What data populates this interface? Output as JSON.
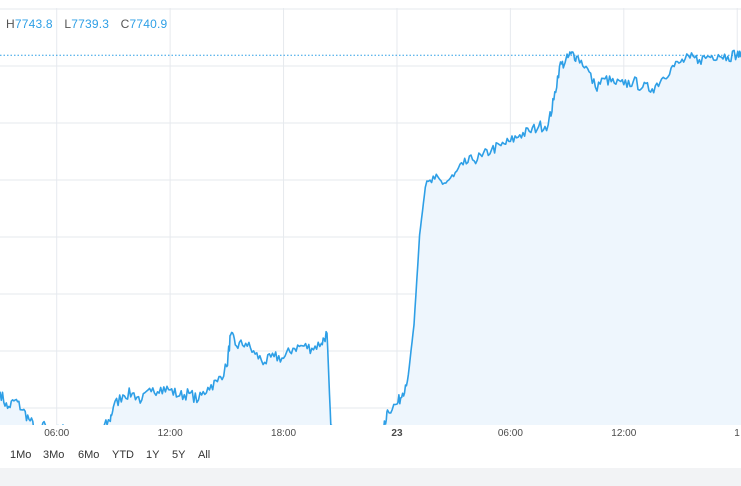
{
  "legend": {
    "high_key": "H",
    "high": "7743.8",
    "low_key": "L",
    "low": "7739.3",
    "close_key": "C",
    "close": "7740.9"
  },
  "range_buttons": [
    "1Mo",
    "3Mo",
    "6Mo",
    "YTD",
    "1Y",
    "5Y",
    "All"
  ],
  "colors": {
    "line": "#2e9fe6",
    "area": "#eef6fd",
    "grid": "#e6e9ee",
    "price_line": "#2e9fe6",
    "footer": "#f2f3f5"
  },
  "chart_data": {
    "type": "area",
    "x_tick_labels": [
      {
        "label": "06:00",
        "hour": 6
      },
      {
        "label": "12:00",
        "hour": 12
      },
      {
        "label": "18:00",
        "hour": 18
      },
      {
        "label": "23",
        "hour": 24,
        "bold": true
      },
      {
        "label": "06:00",
        "hour": 30
      },
      {
        "label": "12:00",
        "hour": 36
      },
      {
        "label": "1",
        "hour": 42
      }
    ],
    "x_range_hours": [
      3,
      42.2
    ],
    "y_range": [
      7300,
      7800
    ],
    "current_price": 7740.9,
    "grid": true,
    "points": [
      [
        3.0,
        7340
      ],
      [
        3.4,
        7320
      ],
      [
        3.8,
        7330
      ],
      [
        4.2,
        7318
      ],
      [
        4.6,
        7305
      ],
      [
        5.0,
        7290
      ],
      [
        5.4,
        7300
      ],
      [
        5.8,
        7288
      ],
      [
        6.2,
        7296
      ],
      [
        6.6,
        7292
      ],
      [
        7.0,
        7285
      ],
      [
        7.4,
        7290
      ],
      [
        7.8,
        7283
      ],
      [
        8.0,
        7280
      ],
      [
        8.4,
        7295
      ],
      [
        8.8,
        7305
      ],
      [
        9.0,
        7322
      ],
      [
        9.5,
        7336
      ],
      [
        10.0,
        7338
      ],
      [
        10.5,
        7330
      ],
      [
        11.0,
        7340
      ],
      [
        11.5,
        7345
      ],
      [
        12.0,
        7342
      ],
      [
        12.5,
        7335
      ],
      [
        13.0,
        7338
      ],
      [
        13.5,
        7330
      ],
      [
        14.0,
        7345
      ],
      [
        14.5,
        7352
      ],
      [
        15.0,
        7370
      ],
      [
        15.2,
        7408
      ],
      [
        15.5,
        7395
      ],
      [
        16.0,
        7398
      ],
      [
        16.5,
        7385
      ],
      [
        17.0,
        7375
      ],
      [
        17.5,
        7382
      ],
      [
        18.0,
        7380
      ],
      [
        18.5,
        7392
      ],
      [
        19.0,
        7395
      ],
      [
        19.5,
        7392
      ],
      [
        20.0,
        7398
      ],
      [
        20.3,
        7410
      ],
      [
        20.5,
        7300
      ],
      [
        20.8,
        7270
      ],
      [
        21.0,
        7285
      ],
      [
        21.5,
        7280
      ],
      [
        22.0,
        7290
      ],
      [
        22.5,
        7285
      ],
      [
        23.0,
        7282
      ],
      [
        23.3,
        7295
      ],
      [
        23.5,
        7318
      ],
      [
        24.0,
        7325
      ],
      [
        24.3,
        7338
      ],
      [
        24.6,
        7360
      ],
      [
        24.9,
        7420
      ],
      [
        25.2,
        7528
      ],
      [
        25.5,
        7585
      ],
      [
        26.0,
        7595
      ],
      [
        26.5,
        7590
      ],
      [
        27.0,
        7598
      ],
      [
        27.5,
        7612
      ],
      [
        28.0,
        7618
      ],
      [
        28.5,
        7622
      ],
      [
        29.0,
        7630
      ],
      [
        29.5,
        7635
      ],
      [
        30.0,
        7640
      ],
      [
        30.5,
        7648
      ],
      [
        31.0,
        7652
      ],
      [
        31.5,
        7658
      ],
      [
        32.0,
        7660
      ],
      [
        32.3,
        7690
      ],
      [
        32.6,
        7730
      ],
      [
        32.9,
        7735
      ],
      [
        33.2,
        7745
      ],
      [
        33.5,
        7742
      ],
      [
        34.0,
        7730
      ],
      [
        34.5,
        7705
      ],
      [
        35.0,
        7715
      ],
      [
        35.5,
        7710
      ],
      [
        36.0,
        7708
      ],
      [
        36.5,
        7712
      ],
      [
        37.0,
        7705
      ],
      [
        37.5,
        7703
      ],
      [
        38.0,
        7715
      ],
      [
        38.5,
        7728
      ],
      [
        39.0,
        7735
      ],
      [
        39.5,
        7740
      ],
      [
        40.0,
        7738
      ],
      [
        40.5,
        7742
      ],
      [
        41.0,
        7744
      ],
      [
        41.5,
        7742
      ],
      [
        42.0,
        7745
      ],
      [
        42.2,
        7741
      ]
    ]
  }
}
